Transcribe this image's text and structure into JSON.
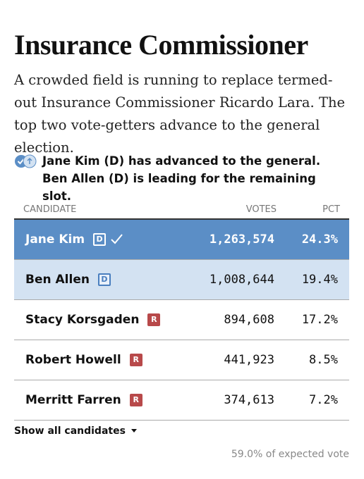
{
  "header": {
    "title": "Insurance Commissioner",
    "description": "A crowded field is running to replace termed-out Insurance Commissioner Ricardo Lara. The top two vote-getters advance to the general election."
  },
  "status": {
    "text": "Jane Kim (D) has advanced to the general. Ben Allen (D) is leading for the remaining slot."
  },
  "table": {
    "columns": [
      "CANDIDATE",
      "VOTES",
      "PCT"
    ],
    "rows": [
      {
        "name": "Jane Kim",
        "party": "D",
        "votes": "1,263,574",
        "pct": "24.3%"
      },
      {
        "name": "Ben Allen",
        "party": "D",
        "votes": "1,008,644",
        "pct": "19.4%"
      },
      {
        "name": "Stacy Korsgaden",
        "party": "R",
        "votes": "894,608",
        "pct": "17.2%"
      },
      {
        "name": "Robert Howell",
        "party": "R",
        "votes": "441,923",
        "pct": "8.5%"
      },
      {
        "name": "Merritt Farren",
        "party": "R",
        "votes": "374,613",
        "pct": "7.2%"
      }
    ]
  },
  "footer": {
    "show_all": "Show all candidates",
    "expected": "59.0% of expected vote"
  }
}
